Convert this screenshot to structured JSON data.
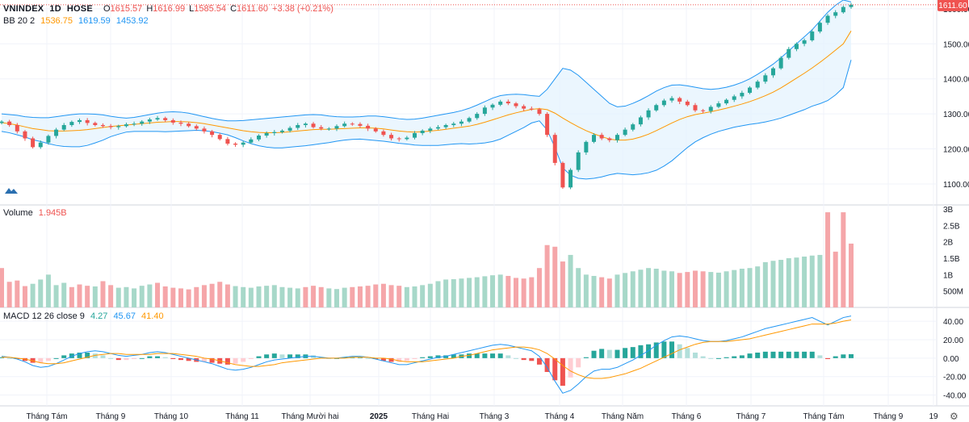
{
  "header": {
    "symbol": "VNINDEX",
    "interval": "1D",
    "exchange": "HOSE",
    "open_label": "O",
    "open": "1615.57",
    "high_label": "H",
    "high": "1616.99",
    "low_label": "L",
    "low": "1585.54",
    "close_label": "C",
    "close": "1611.60",
    "change": "+3.38 (+0.21%)"
  },
  "bb_legend": {
    "label": "BB 20 2",
    "basis": "1536.75",
    "upper": "1619.59",
    "lower": "1453.92"
  },
  "volume_legend": {
    "label": "Volume",
    "value": "1.945B"
  },
  "macd_legend": {
    "label": "MACD 12 26 close 9",
    "hist": "4.27",
    "macd": "45.67",
    "signal": "41.40"
  },
  "last_price_tag": "1611.60",
  "colors": {
    "up": "#26a69a",
    "down": "#ef5350",
    "up_vol": "#a7d8c9",
    "down_vol": "#f5a6a9",
    "bb_band": "#2196f3",
    "bb_basis": "#ff9800",
    "bb_fill": "#e3f2fd",
    "macd_line": "#2196f3",
    "signal_line": "#ff9800"
  },
  "icons": {
    "logo": "tradingview-logo-icon",
    "settings": "gear-icon"
  },
  "chart_data": [
    {
      "type": "candlestick",
      "title": "VNINDEX 1D HOSE",
      "y_ticks": [
        1100,
        1200,
        1300,
        1400,
        1500,
        1600
      ],
      "ylim": [
        1040,
        1625
      ],
      "x_ticks": [
        "Tháng Tám",
        "Tháng 9",
        "Tháng 10",
        "Tháng 11",
        "Tháng Mười hai",
        "2025",
        "Tháng Hai",
        "Tháng 3",
        "Tháng 4",
        "Tháng Năm",
        "Tháng 6",
        "Tháng 7",
        "Tháng Tám",
        "Tháng 9",
        "19"
      ],
      "close_series": [
        1278,
        1268,
        1250,
        1230,
        1205,
        1218,
        1237,
        1255,
        1268,
        1277,
        1282,
        1274,
        1268,
        1265,
        1262,
        1265,
        1270,
        1272,
        1278,
        1284,
        1288,
        1282,
        1275,
        1272,
        1265,
        1258,
        1250,
        1240,
        1228,
        1215,
        1212,
        1218,
        1227,
        1238,
        1245,
        1248,
        1252,
        1260,
        1268,
        1272,
        1262,
        1258,
        1258,
        1265,
        1272,
        1271,
        1266,
        1258,
        1250,
        1240,
        1230,
        1228,
        1232,
        1245,
        1252,
        1258,
        1262,
        1268,
        1272,
        1278,
        1288,
        1300,
        1318,
        1326,
        1335,
        1330,
        1322,
        1315,
        1313,
        1300,
        1240,
        1160,
        1090,
        1140,
        1190,
        1220,
        1240,
        1230,
        1225,
        1240,
        1255,
        1270,
        1290,
        1310,
        1325,
        1338,
        1345,
        1335,
        1325,
        1310,
        1308,
        1320,
        1330,
        1340,
        1350,
        1360,
        1375,
        1392,
        1410,
        1430,
        1460,
        1485,
        1500,
        1510,
        1535,
        1560,
        1580,
        1590,
        1605,
        1611.6
      ],
      "bb_basis_series": [
        1275,
        1272,
        1268,
        1263,
        1258,
        1255,
        1252,
        1251,
        1251,
        1252,
        1253,
        1255,
        1258,
        1261,
        1264,
        1266,
        1268,
        1270,
        1272,
        1274,
        1276,
        1277,
        1278,
        1278,
        1277,
        1275,
        1272,
        1268,
        1264,
        1260,
        1256,
        1252,
        1249,
        1247,
        1246,
        1246,
        1247,
        1249,
        1251,
        1253,
        1255,
        1256,
        1256,
        1257,
        1258,
        1259,
        1260,
        1260,
        1259,
        1257,
        1254,
        1251,
        1249,
        1248,
        1249,
        1251,
        1253,
        1256,
        1259,
        1262,
        1265,
        1270,
        1276,
        1283,
        1290,
        1297,
        1303,
        1308,
        1313,
        1315,
        1312,
        1302,
        1288,
        1275,
        1263,
        1252,
        1243,
        1235,
        1228,
        1225,
        1225,
        1228,
        1234,
        1242,
        1252,
        1263,
        1274,
        1284,
        1292,
        1298,
        1302,
        1306,
        1311,
        1316,
        1322,
        1328,
        1335,
        1343,
        1352,
        1362,
        1374,
        1388,
        1402,
        1416,
        1431,
        1447,
        1464,
        1482,
        1500,
        1536.75
      ],
      "bb_upper_series": [
        1300,
        1298,
        1296,
        1292,
        1290,
        1289,
        1289,
        1292,
        1295,
        1298,
        1300,
        1300,
        1299,
        1297,
        1293,
        1290,
        1288,
        1290,
        1294,
        1298,
        1302,
        1305,
        1306,
        1305,
        1302,
        1297,
        1292,
        1287,
        1283,
        1280,
        1280,
        1281,
        1283,
        1285,
        1287,
        1289,
        1291,
        1293,
        1295,
        1297,
        1298,
        1297,
        1294,
        1292,
        1291,
        1291,
        1292,
        1294,
        1294,
        1292,
        1289,
        1286,
        1284,
        1285,
        1288,
        1292,
        1296,
        1300,
        1304,
        1309,
        1316,
        1325,
        1335,
        1345,
        1352,
        1355,
        1356,
        1355,
        1352,
        1350,
        1370,
        1400,
        1430,
        1425,
        1410,
        1390,
        1370,
        1350,
        1330,
        1320,
        1322,
        1330,
        1340,
        1352,
        1365,
        1375,
        1382,
        1383,
        1380,
        1376,
        1372,
        1370,
        1372,
        1376,
        1382,
        1390,
        1400,
        1413,
        1427,
        1442,
        1460,
        1480,
        1500,
        1520,
        1540,
        1565,
        1590,
        1610,
        1625,
        1619.59
      ],
      "bb_lower_series": [
        1250,
        1246,
        1240,
        1234,
        1226,
        1221,
        1215,
        1210,
        1207,
        1206,
        1206,
        1210,
        1217,
        1225,
        1235,
        1242,
        1248,
        1250,
        1250,
        1250,
        1250,
        1249,
        1250,
        1251,
        1252,
        1253,
        1252,
        1249,
        1245,
        1240,
        1232,
        1223,
        1215,
        1209,
        1205,
        1203,
        1203,
        1205,
        1207,
        1209,
        1212,
        1215,
        1218,
        1222,
        1225,
        1227,
        1228,
        1226,
        1224,
        1222,
        1219,
        1216,
        1214,
        1211,
        1210,
        1210,
        1210,
        1212,
        1214,
        1215,
        1214,
        1215,
        1217,
        1221,
        1228,
        1239,
        1250,
        1261,
        1274,
        1280,
        1254,
        1204,
        1146,
        1125,
        1116,
        1114,
        1116,
        1120,
        1126,
        1130,
        1128,
        1126,
        1128,
        1132,
        1139,
        1151,
        1166,
        1185,
        1204,
        1220,
        1232,
        1242,
        1250,
        1256,
        1262,
        1266,
        1270,
        1273,
        1277,
        1282,
        1288,
        1296,
        1304,
        1312,
        1322,
        1329,
        1338,
        1354,
        1375,
        1453.92
      ]
    },
    {
      "type": "bar",
      "title": "Volume",
      "y_ticks": [
        "500M",
        "1B",
        "1.5B",
        "2B",
        "2.5B",
        "3B"
      ],
      "ylim": [
        0,
        3.0
      ],
      "values": [
        1.2,
        0.78,
        0.82,
        0.65,
        0.72,
        0.85,
        1.0,
        0.68,
        0.75,
        0.62,
        0.7,
        0.66,
        0.64,
        0.8,
        0.68,
        0.6,
        0.62,
        0.58,
        0.66,
        0.7,
        0.75,
        0.64,
        0.6,
        0.58,
        0.55,
        0.62,
        0.68,
        0.72,
        0.78,
        0.7,
        0.65,
        0.62,
        0.6,
        0.64,
        0.66,
        0.68,
        0.62,
        0.6,
        0.58,
        0.62,
        0.66,
        0.62,
        0.58,
        0.56,
        0.6,
        0.62,
        0.64,
        0.66,
        0.7,
        0.72,
        0.68,
        0.66,
        0.62,
        0.64,
        0.68,
        0.72,
        0.8,
        0.85,
        0.86,
        0.88,
        0.9,
        0.92,
        0.95,
        0.98,
        1.0,
        0.96,
        0.9,
        0.88,
        0.92,
        1.2,
        1.9,
        1.85,
        1.4,
        1.6,
        1.2,
        1.0,
        0.96,
        0.92,
        0.88,
        1.0,
        1.05,
        1.1,
        1.15,
        1.2,
        1.18,
        1.12,
        1.1,
        1.05,
        1.08,
        1.12,
        1.1,
        1.08,
        1.06,
        1.1,
        1.14,
        1.18,
        1.2,
        1.25,
        1.38,
        1.42,
        1.45,
        1.5,
        1.52,
        1.55,
        1.58,
        1.6,
        2.9,
        1.7,
        2.9,
        1.945
      ],
      "directions": [
        "d",
        "d",
        "d",
        "d",
        "u",
        "u",
        "u",
        "u",
        "u",
        "d",
        "d",
        "d",
        "u",
        "d",
        "d",
        "u",
        "u",
        "u",
        "u",
        "u",
        "d",
        "d",
        "d",
        "d",
        "d",
        "d",
        "d",
        "d",
        "d",
        "d",
        "u",
        "u",
        "u",
        "u",
        "u",
        "u",
        "u",
        "u",
        "u",
        "d",
        "d",
        "d",
        "u",
        "u",
        "u",
        "d",
        "d",
        "d",
        "d",
        "d",
        "d",
        "d",
        "u",
        "u",
        "u",
        "u",
        "u",
        "u",
        "u",
        "u",
        "u",
        "u",
        "u",
        "u",
        "u",
        "d",
        "d",
        "d",
        "d",
        "d",
        "d",
        "d",
        "d",
        "u",
        "u",
        "u",
        "u",
        "d",
        "d",
        "u",
        "u",
        "u",
        "u",
        "u",
        "u",
        "u",
        "u",
        "d",
        "d",
        "d",
        "d",
        "u",
        "u",
        "u",
        "u",
        "u",
        "u",
        "u",
        "u",
        "u",
        "u",
        "u",
        "u",
        "u",
        "u",
        "u",
        "d",
        "d",
        "d",
        "d"
      ]
    },
    {
      "type": "line",
      "title": "MACD 12 26 close 9",
      "y_ticks": [
        -40,
        -20,
        0,
        20,
        40
      ],
      "ylim": [
        -50,
        48
      ],
      "macd_series": [
        2,
        1,
        -1,
        -4,
        -8,
        -10,
        -9,
        -6,
        -2,
        2,
        5,
        7,
        8,
        7,
        5,
        3,
        2,
        3,
        4,
        6,
        7,
        6,
        4,
        2,
        0,
        -2,
        -4,
        -6,
        -9,
        -12,
        -13,
        -12,
        -10,
        -7,
        -4,
        -2,
        -1,
        0,
        1,
        2,
        2,
        1,
        0,
        0,
        1,
        2,
        2,
        1,
        -1,
        -3,
        -5,
        -7,
        -7,
        -5,
        -3,
        -1,
        1,
        2,
        4,
        6,
        8,
        10,
        12,
        14,
        15,
        14,
        12,
        10,
        8,
        2,
        -10,
        -25,
        -38,
        -35,
        -28,
        -20,
        -14,
        -12,
        -12,
        -10,
        -6,
        -2,
        3,
        8,
        14,
        19,
        23,
        24,
        23,
        21,
        19,
        18,
        18,
        19,
        21,
        23,
        26,
        29,
        32,
        34,
        36,
        38,
        40,
        42,
        44,
        40,
        36,
        40,
        44,
        45.67
      ],
      "signal_series": [
        1,
        1,
        0,
        -1,
        -3,
        -5,
        -6,
        -6,
        -5,
        -3,
        -1,
        1,
        3,
        4,
        5,
        5,
        4,
        4,
        4,
        4,
        5,
        5,
        5,
        4,
        3,
        2,
        0,
        -1,
        -3,
        -5,
        -7,
        -8,
        -9,
        -9,
        -8,
        -7,
        -5,
        -4,
        -3,
        -2,
        -1,
        0,
        0,
        0,
        0,
        1,
        1,
        1,
        0,
        0,
        -1,
        -3,
        -4,
        -4,
        -4,
        -3,
        -2,
        -1,
        0,
        2,
        3,
        5,
        7,
        9,
        10,
        11,
        12,
        12,
        11,
        9,
        5,
        -1,
        -8,
        -14,
        -18,
        -21,
        -22,
        -22,
        -21,
        -19,
        -17,
        -14,
        -11,
        -7,
        -3,
        1,
        5,
        9,
        12,
        15,
        17,
        18,
        18,
        18,
        19,
        20,
        21,
        23,
        25,
        27,
        29,
        31,
        33,
        35,
        37,
        37,
        37,
        38,
        40,
        41.4
      ]
    }
  ]
}
